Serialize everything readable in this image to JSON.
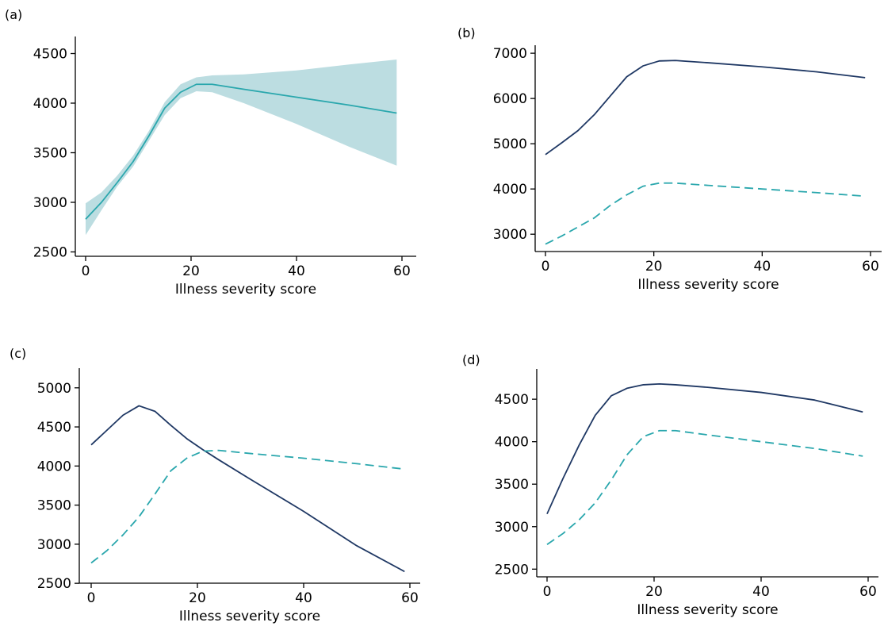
{
  "colors": {
    "navy": "#1f3864",
    "teal": "#2aa7ad",
    "band": "#bcdde1"
  },
  "chart_data": [
    {
      "panel_label": "(a)",
      "type": "line",
      "xlabel": "Illness severity score",
      "ylabel": "",
      "xlim": [
        0,
        60
      ],
      "ylim": [
        2400,
        4600
      ],
      "xticks": [
        "0",
        "20",
        "40",
        "60"
      ],
      "yticks": [
        "2500",
        "3000",
        "3500",
        "4000",
        "4500"
      ],
      "band": {
        "name": "",
        "x": [
          0,
          3,
          6,
          9,
          12,
          15,
          18,
          21,
          24,
          30,
          40,
          50,
          59
        ],
        "lower": [
          2670,
          2920,
          3160,
          3360,
          3620,
          3880,
          4050,
          4120,
          4110,
          4000,
          3790,
          3560,
          3370
        ],
        "upper": [
          2990,
          3100,
          3270,
          3470,
          3720,
          4010,
          4190,
          4260,
          4280,
          4290,
          4330,
          4390,
          4440
        ],
        "color": "#bcdde1"
      },
      "series": [
        {
          "name": "",
          "style": "solid",
          "color": "#2aa7ad",
          "x": [
            0,
            3,
            6,
            9,
            12,
            15,
            18,
            21,
            24,
            30,
            40,
            50,
            59
          ],
          "y": [
            2830,
            3000,
            3200,
            3410,
            3670,
            3950,
            4110,
            4190,
            4190,
            4140,
            4060,
            3980,
            3900
          ]
        }
      ]
    },
    {
      "panel_label": "(b)",
      "type": "line",
      "xlabel": "Illness severity score",
      "ylabel": "",
      "xlim": [
        0,
        60
      ],
      "ylim": [
        2600,
        7300
      ],
      "xticks": [
        "0",
        "20",
        "40",
        "60"
      ],
      "yticks": [
        "3000",
        "4000",
        "5000",
        "6000",
        "7000"
      ],
      "series": [
        {
          "name": "",
          "style": "solid",
          "color": "#1f3864",
          "x": [
            0,
            3,
            6,
            9,
            12,
            15,
            18,
            21,
            24,
            30,
            40,
            50,
            59
          ],
          "y": [
            4760,
            5020,
            5290,
            5640,
            6060,
            6480,
            6720,
            6830,
            6840,
            6790,
            6700,
            6590,
            6460
          ]
        },
        {
          "name": "",
          "style": "dashed",
          "color": "#2aa7ad",
          "x": [
            0,
            3,
            6,
            9,
            12,
            15,
            18,
            21,
            24,
            30,
            40,
            50,
            59
          ],
          "y": [
            2780,
            2960,
            3160,
            3360,
            3640,
            3870,
            4060,
            4130,
            4130,
            4080,
            4000,
            3920,
            3840
          ]
        }
      ]
    },
    {
      "panel_label": "(c)",
      "type": "line",
      "xlabel": "Illness severity score",
      "ylabel": "",
      "xlim": [
        0,
        60
      ],
      "ylim": [
        2400,
        5150
      ],
      "xticks": [
        "0",
        "20",
        "40",
        "60"
      ],
      "yticks": [
        "2500",
        "3000",
        "3500",
        "4000",
        "4500",
        "5000"
      ],
      "series": [
        {
          "name": "",
          "style": "solid",
          "color": "#1f3864",
          "x": [
            0,
            3,
            6,
            9,
            12,
            15,
            18,
            21,
            24,
            30,
            40,
            50,
            59
          ],
          "y": [
            4270,
            4460,
            4650,
            4770,
            4700,
            4520,
            4350,
            4210,
            4080,
            3830,
            3420,
            2980,
            2650
          ]
        },
        {
          "name": "",
          "style": "dashed",
          "color": "#2aa7ad",
          "x": [
            0,
            3,
            6,
            9,
            12,
            15,
            18,
            21,
            24,
            30,
            40,
            50,
            59
          ],
          "y": [
            2760,
            2920,
            3120,
            3350,
            3640,
            3940,
            4100,
            4190,
            4200,
            4160,
            4100,
            4030,
            3960
          ]
        }
      ]
    },
    {
      "panel_label": "(d)",
      "type": "line",
      "xlabel": "Illness severity score",
      "ylabel": "",
      "xlim": [
        0,
        60
      ],
      "ylim": [
        2400,
        4800
      ],
      "xticks": [
        "0",
        "20",
        "40",
        "60"
      ],
      "yticks": [
        "2500",
        "3000",
        "3500",
        "4000",
        "4500"
      ],
      "series": [
        {
          "name": "",
          "style": "solid",
          "color": "#1f3864",
          "x": [
            0,
            3,
            6,
            9,
            12,
            15,
            18,
            21,
            24,
            30,
            40,
            50,
            59
          ],
          "y": [
            3150,
            3570,
            3960,
            4310,
            4540,
            4630,
            4670,
            4680,
            4670,
            4640,
            4580,
            4490,
            4350
          ]
        },
        {
          "name": "",
          "style": "dashed",
          "color": "#2aa7ad",
          "x": [
            0,
            3,
            6,
            9,
            12,
            15,
            18,
            21,
            24,
            30,
            40,
            50,
            59
          ],
          "y": [
            2790,
            2920,
            3080,
            3280,
            3550,
            3850,
            4060,
            4130,
            4130,
            4080,
            4000,
            3920,
            3830
          ]
        }
      ]
    }
  ]
}
